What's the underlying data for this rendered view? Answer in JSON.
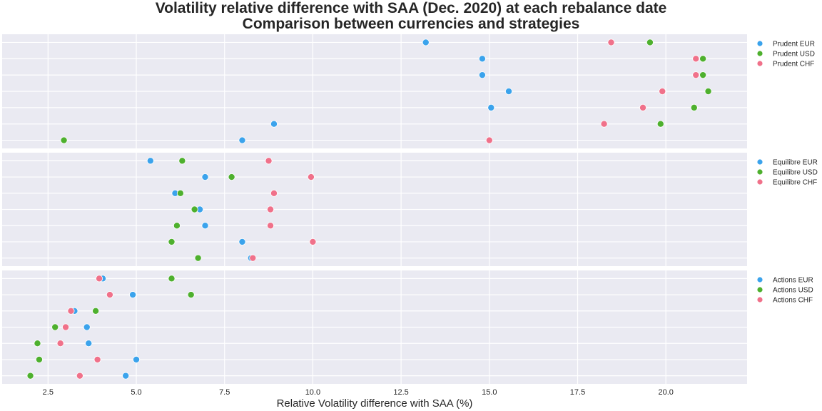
{
  "title_line1": "Volatility relative difference with SAA (Dec. 2020) at each rebalance date",
  "title_line2": "Comparison between currencies and strategies",
  "chart_data": {
    "type": "scatter",
    "xlabel": "Relative Volatility difference with SAA (%)",
    "xlim": [
      1.2,
      22.3
    ],
    "xticks": [
      2.5,
      5.0,
      7.5,
      10.0,
      12.5,
      15.0,
      17.5,
      20.0
    ],
    "xtick_labels": [
      "2.5",
      "5.0",
      "7.5",
      "10.0",
      "12.5",
      "15.0",
      "17.5",
      "20.0"
    ],
    "grid": true,
    "colors": {
      "EUR": "#3ba3ec",
      "USD": "#4eb02e",
      "CHF": "#f0718a"
    },
    "panels": [
      {
        "legend": [
          "Prudent EUR",
          "Prudent USD",
          "Prudent CHF"
        ],
        "series": [
          {
            "name": "Prudent EUR",
            "currency": "EUR",
            "values": [
              13.2,
              14.8,
              14.8,
              15.55,
              15.05,
              8.9,
              8.0
            ]
          },
          {
            "name": "Prudent USD",
            "currency": "USD",
            "values": [
              19.55,
              21.05,
              21.05,
              21.2,
              20.8,
              19.85,
              2.95
            ]
          },
          {
            "name": "Prudent CHF",
            "currency": "CHF",
            "values": [
              18.45,
              20.85,
              20.85,
              19.9,
              19.35,
              18.25,
              15.0
            ]
          }
        ]
      },
      {
        "legend": [
          "Equilibre EUR",
          "Equilibre USD",
          "Equilibre CHF"
        ],
        "series": [
          {
            "name": "Equilibre EUR",
            "currency": "EUR",
            "values": [
              5.4,
              6.95,
              6.1,
              6.8,
              6.95,
              8.0,
              8.25
            ]
          },
          {
            "name": "Equilibre USD",
            "currency": "USD",
            "values": [
              6.3,
              7.7,
              6.25,
              6.65,
              6.15,
              6.0,
              6.75
            ]
          },
          {
            "name": "Equilibre CHF",
            "currency": "CHF",
            "values": [
              8.75,
              9.95,
              8.9,
              8.8,
              8.8,
              10.0,
              8.3
            ]
          }
        ]
      },
      {
        "legend": [
          "Actions EUR",
          "Actions USD",
          "Actions CHF"
        ],
        "series": [
          {
            "name": "Actions EUR",
            "currency": "EUR",
            "values": [
              4.05,
              4.9,
              3.25,
              3.6,
              3.65,
              5.0,
              4.7
            ]
          },
          {
            "name": "Actions USD",
            "currency": "USD",
            "values": [
              6.0,
              6.55,
              3.85,
              2.7,
              2.2,
              2.25,
              2.0
            ]
          },
          {
            "name": "Actions CHF",
            "currency": "CHF",
            "values": [
              3.95,
              4.25,
              3.15,
              3.0,
              2.85,
              3.9,
              3.4
            ]
          }
        ]
      }
    ]
  }
}
